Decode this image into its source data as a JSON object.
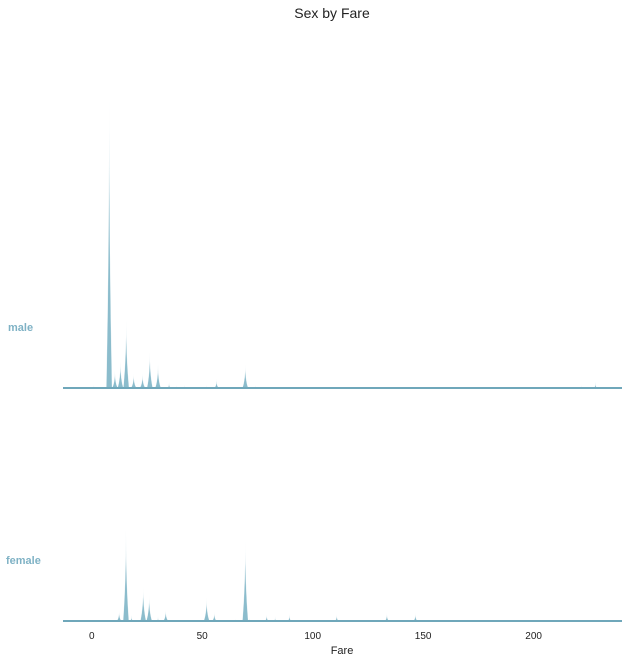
{
  "chart_data": {
    "type": "area",
    "title": "Sex by Fare",
    "xlabel": "Fare",
    "ylabel": "",
    "xlim": [
      -13,
      240
    ],
    "x_ticks": [
      0,
      50,
      100,
      150,
      200
    ],
    "grid": false,
    "legend": "none",
    "ridgeline": true,
    "colors": {
      "fill": "#8bbccc",
      "baseline": "#6fa7ba",
      "label": "#7fb2c5"
    },
    "series": [
      {
        "name": "male",
        "ymax": 1.0,
        "peaks": [
          {
            "x": 1.0,
            "height": 0.01
          },
          {
            "x": 7.9,
            "height": 0.99
          },
          {
            "x": 10.5,
            "height": 0.06
          },
          {
            "x": 13.0,
            "height": 0.09
          },
          {
            "x": 15.6,
            "height": 0.23
          },
          {
            "x": 19.0,
            "height": 0.05
          },
          {
            "x": 23.0,
            "height": 0.05
          },
          {
            "x": 26.3,
            "height": 0.12
          },
          {
            "x": 30.0,
            "height": 0.08
          },
          {
            "x": 35.0,
            "height": 0.02
          },
          {
            "x": 38.5,
            "height": 0.01
          },
          {
            "x": 42.0,
            "height": 0.01
          },
          {
            "x": 51.9,
            "height": 0.01
          },
          {
            "x": 56.5,
            "height": 0.03
          },
          {
            "x": 69.5,
            "height": 0.08
          },
          {
            "x": 74.0,
            "height": 0.01
          },
          {
            "x": 221.8,
            "height": 0.01
          },
          {
            "x": 228.0,
            "height": 0.02
          }
        ]
      },
      {
        "name": "female",
        "ymax": 1.0,
        "peaks": [
          {
            "x": 12.4,
            "height": 0.09
          },
          {
            "x": 15.5,
            "height": 0.77
          },
          {
            "x": 18.0,
            "height": 0.05
          },
          {
            "x": 23.3,
            "height": 0.29
          },
          {
            "x": 26.0,
            "height": 0.22
          },
          {
            "x": 30.0,
            "height": 0.04
          },
          {
            "x": 33.5,
            "height": 0.1
          },
          {
            "x": 52.0,
            "height": 0.2
          },
          {
            "x": 55.5,
            "height": 0.08
          },
          {
            "x": 65.0,
            "height": 0.02
          },
          {
            "x": 69.5,
            "height": 0.68
          },
          {
            "x": 71.5,
            "height": 0.03
          },
          {
            "x": 79.2,
            "height": 0.06
          },
          {
            "x": 83.0,
            "height": 0.04
          },
          {
            "x": 89.5,
            "height": 0.06
          },
          {
            "x": 110.9,
            "height": 0.06
          },
          {
            "x": 133.6,
            "height": 0.07
          },
          {
            "x": 146.5,
            "height": 0.07
          }
        ]
      }
    ]
  }
}
